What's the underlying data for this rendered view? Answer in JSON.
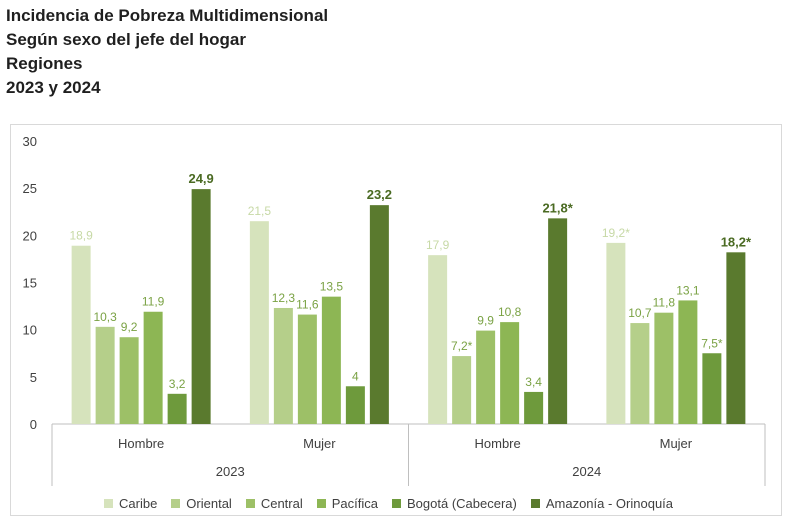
{
  "title_lines": [
    "Incidencia de Pobreza Multidimensional",
    "Según sexo del jefe del hogar",
    "Regiones",
    "2023 y 2024"
  ],
  "chart_data": {
    "type": "bar",
    "title": "Incidencia de Pobreza Multidimensional",
    "ylim": [
      0,
      30
    ],
    "yticks": [
      "0",
      "5",
      "10",
      "15",
      "20",
      "25",
      "30"
    ],
    "grid": false,
    "legend_position": "bottom",
    "groups": [
      {
        "year": "2023",
        "categories": [
          "Hombre",
          "Mujer"
        ]
      },
      {
        "year": "2024",
        "categories": [
          "Hombre",
          "Mujer"
        ]
      }
    ],
    "series": [
      {
        "name": "Caribe",
        "color": "#d6e3bc",
        "values": [
          18.9,
          21.5,
          17.9,
          19.2
        ],
        "labels": [
          "18,9",
          "21,5",
          "17,9",
          "19,2*"
        ]
      },
      {
        "name": "Oriental",
        "color": "#b5cf8a",
        "values": [
          10.3,
          12.3,
          7.2,
          10.7
        ],
        "labels": [
          "10,3",
          "12,3",
          "7,2*",
          "10,7"
        ]
      },
      {
        "name": "Central",
        "color": "#9dc067",
        "values": [
          9.2,
          11.6,
          9.9,
          11.8
        ],
        "labels": [
          "9,2",
          "11,6",
          "9,9",
          "11,8"
        ]
      },
      {
        "name": "Pacífica",
        "color": "#8db654",
        "values": [
          11.9,
          13.5,
          10.8,
          13.1
        ],
        "labels": [
          "11,9",
          "13,5",
          "10,8",
          "13,1"
        ]
      },
      {
        "name": "Bogotá (Cabecera)",
        "color": "#6e9a3c",
        "values": [
          3.2,
          4,
          3.4,
          7.5
        ],
        "labels": [
          "3,2",
          "4",
          "3,4",
          "7,5*"
        ]
      },
      {
        "name": "Amazonía - Orinoquía",
        "color": "#5a7a2e",
        "values": [
          24.9,
          23.2,
          21.8,
          18.2
        ],
        "labels": [
          "24,9",
          "23,2",
          "21,8*",
          "18,2*"
        ]
      }
    ]
  }
}
